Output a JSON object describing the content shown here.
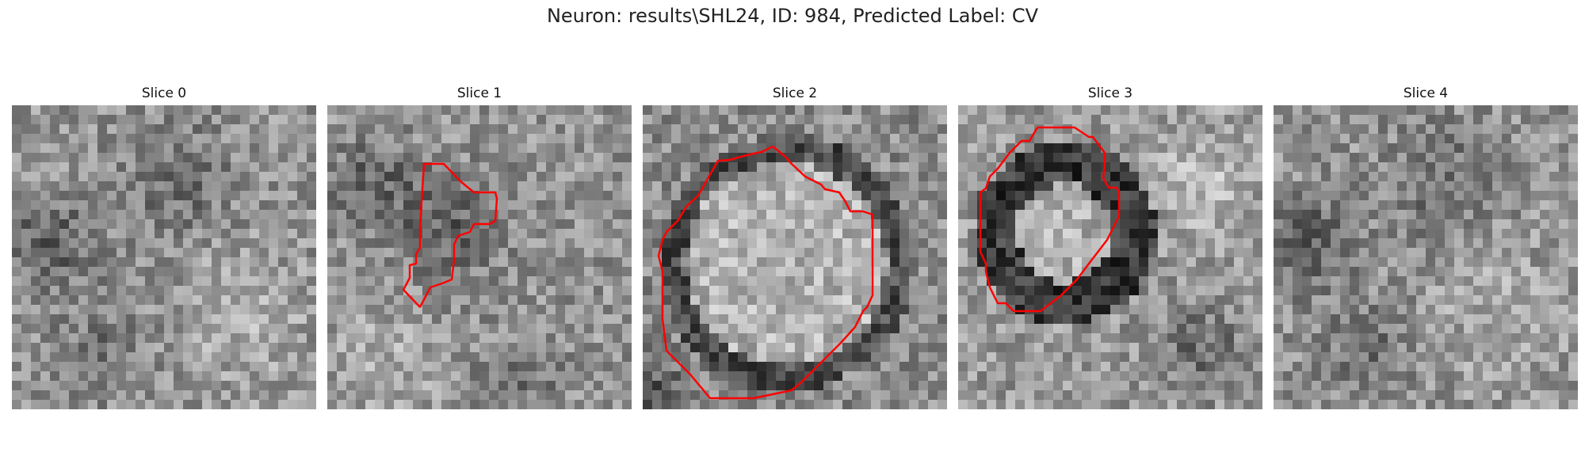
{
  "figure": {
    "title": "Neuron: results\\SHL24, ID: 984, Predicted Label: CV"
  },
  "contour_color": "#ff0000",
  "slices": [
    {
      "label": "Slice 0",
      "pattern": "noise-with-dark-smudges",
      "has_contour": false
    },
    {
      "label": "Slice 1",
      "pattern": "small-dark-region",
      "has_contour": true
    },
    {
      "label": "Slice 2",
      "pattern": "large-bright-disc-with-dark-rim",
      "has_contour": true
    },
    {
      "label": "Slice 3",
      "pattern": "medium-disc-with-thick-dark-ring",
      "has_contour": true
    },
    {
      "label": "Slice 4",
      "pattern": "noise-with-dark-smudges",
      "has_contour": false
    }
  ]
}
